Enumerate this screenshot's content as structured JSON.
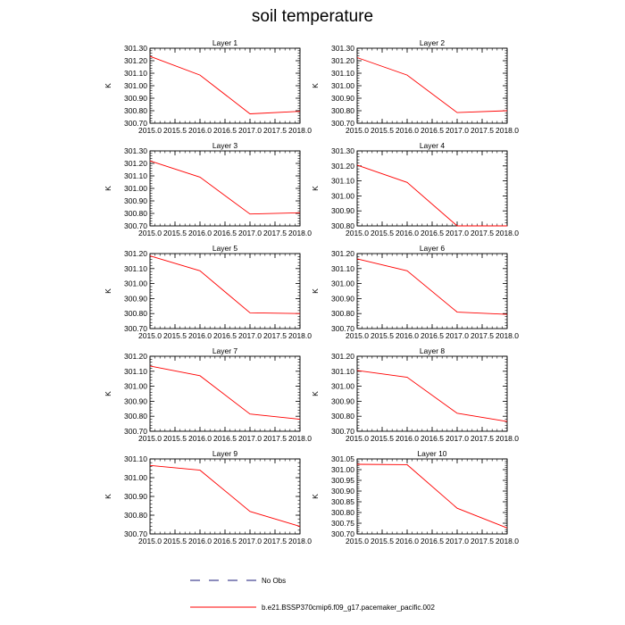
{
  "title": "soil temperature",
  "legend": {
    "items": [
      {
        "label": "No Obs",
        "style": "dashed",
        "color": "#1a1a7a"
      },
      {
        "label": "b.e21.BSSP370cmip6.f09_g17.pacemaker_pacific.002",
        "style": "solid",
        "color": "#ff0000"
      }
    ]
  },
  "chart_data": [
    {
      "type": "line",
      "title": "Layer 1",
      "ylabel": "K",
      "xlim": [
        2015.0,
        2018.0
      ],
      "ylim": [
        300.7,
        301.3
      ],
      "xticks": [
        "2015.0",
        "2015.5",
        "2016.0",
        "2016.5",
        "2017.0",
        "2017.5",
        "2018.0"
      ],
      "yticks": [
        "300.70",
        "300.80",
        "300.90",
        "301.00",
        "301.10",
        "301.20",
        "301.30"
      ],
      "series": [
        {
          "x": [
            2015,
            2016,
            2017,
            2018
          ],
          "y": [
            301.235,
            301.085,
            300.775,
            300.795
          ],
          "color": "#ff0000"
        }
      ]
    },
    {
      "type": "line",
      "title": "Layer 2",
      "ylabel": "K",
      "xlim": [
        2015.0,
        2018.0
      ],
      "ylim": [
        300.7,
        301.3
      ],
      "xticks": [
        "2015.0",
        "2015.5",
        "2016.0",
        "2016.5",
        "2017.0",
        "2017.5",
        "2018.0"
      ],
      "yticks": [
        "300.70",
        "300.80",
        "300.90",
        "301.00",
        "301.10",
        "301.20",
        "301.30"
      ],
      "series": [
        {
          "x": [
            2015,
            2016,
            2017,
            2018
          ],
          "y": [
            301.225,
            301.085,
            300.785,
            300.8
          ],
          "color": "#ff0000"
        }
      ]
    },
    {
      "type": "line",
      "title": "Layer 3",
      "ylabel": "K",
      "xlim": [
        2015.0,
        2018.0
      ],
      "ylim": [
        300.7,
        301.3
      ],
      "xticks": [
        "2015.0",
        "2015.5",
        "2016.0",
        "2016.5",
        "2017.0",
        "2017.5",
        "2018.0"
      ],
      "yticks": [
        "300.70",
        "300.80",
        "300.90",
        "301.00",
        "301.10",
        "301.20",
        "301.30"
      ],
      "series": [
        {
          "x": [
            2015,
            2016,
            2017,
            2018
          ],
          "y": [
            301.22,
            301.09,
            300.795,
            300.805
          ],
          "color": "#ff0000"
        }
      ]
    },
    {
      "type": "line",
      "title": "Layer 4",
      "ylabel": "K",
      "xlim": [
        2015.0,
        2018.0
      ],
      "ylim": [
        300.8,
        301.3
      ],
      "xticks": [
        "2015.0",
        "2015.5",
        "2016.0",
        "2016.5",
        "2017.0",
        "2017.5",
        "2018.0"
      ],
      "yticks": [
        "300.80",
        "300.90",
        "301.00",
        "301.10",
        "301.20",
        "301.30"
      ],
      "series": [
        {
          "x": [
            2015,
            2016,
            2017,
            2018
          ],
          "y": [
            301.205,
            301.09,
            300.8,
            300.8
          ],
          "color": "#ff0000"
        }
      ]
    },
    {
      "type": "line",
      "title": "Layer 5",
      "ylabel": "K",
      "xlim": [
        2015.0,
        2018.0
      ],
      "ylim": [
        300.7,
        301.2
      ],
      "xticks": [
        "2015.0",
        "2015.5",
        "2016.0",
        "2016.5",
        "2017.0",
        "2017.5",
        "2018.0"
      ],
      "yticks": [
        "300.70",
        "300.80",
        "300.90",
        "301.00",
        "301.10",
        "301.20"
      ],
      "series": [
        {
          "x": [
            2015,
            2016,
            2017,
            2018
          ],
          "y": [
            301.185,
            301.085,
            300.805,
            300.8
          ],
          "color": "#ff0000"
        }
      ]
    },
    {
      "type": "line",
      "title": "Layer 6",
      "ylabel": "K",
      "xlim": [
        2015.0,
        2018.0
      ],
      "ylim": [
        300.7,
        301.2
      ],
      "xticks": [
        "2015.0",
        "2015.5",
        "2016.0",
        "2016.5",
        "2017.0",
        "2017.5",
        "2018.0"
      ],
      "yticks": [
        "300.70",
        "300.80",
        "300.90",
        "301.00",
        "301.10",
        "301.20"
      ],
      "series": [
        {
          "x": [
            2015,
            2016,
            2017,
            2018
          ],
          "y": [
            301.165,
            301.085,
            300.81,
            300.795
          ],
          "color": "#ff0000"
        }
      ]
    },
    {
      "type": "line",
      "title": "Layer 7",
      "ylabel": "K",
      "xlim": [
        2015.0,
        2018.0
      ],
      "ylim": [
        300.7,
        301.2
      ],
      "xticks": [
        "2015.0",
        "2015.5",
        "2016.0",
        "2016.5",
        "2017.0",
        "2017.5",
        "2018.0"
      ],
      "yticks": [
        "300.70",
        "300.80",
        "300.90",
        "301.00",
        "301.10",
        "301.20"
      ],
      "series": [
        {
          "x": [
            2015,
            2016,
            2017,
            2018
          ],
          "y": [
            301.135,
            301.07,
            300.815,
            300.78
          ],
          "color": "#ff0000"
        }
      ]
    },
    {
      "type": "line",
      "title": "Layer 8",
      "ylabel": "K",
      "xlim": [
        2015.0,
        2018.0
      ],
      "ylim": [
        300.7,
        301.2
      ],
      "xticks": [
        "2015.0",
        "2015.5",
        "2016.0",
        "2016.5",
        "2017.0",
        "2017.5",
        "2018.0"
      ],
      "yticks": [
        "300.70",
        "300.80",
        "300.90",
        "301.00",
        "301.10",
        "301.20"
      ],
      "series": [
        {
          "x": [
            2015,
            2016,
            2017,
            2018
          ],
          "y": [
            301.105,
            301.06,
            300.82,
            300.765
          ],
          "color": "#ff0000"
        }
      ]
    },
    {
      "type": "line",
      "title": "Layer 9",
      "ylabel": "K",
      "xlim": [
        2015.0,
        2018.0
      ],
      "ylim": [
        300.7,
        301.1
      ],
      "xticks": [
        "2015.0",
        "2015.5",
        "2016.0",
        "2016.5",
        "2017.0",
        "2017.5",
        "2018.0"
      ],
      "yticks": [
        "300.70",
        "300.80",
        "300.90",
        "301.00",
        "301.10"
      ],
      "series": [
        {
          "x": [
            2015,
            2016,
            2017,
            2018
          ],
          "y": [
            301.065,
            301.04,
            300.82,
            300.74
          ],
          "color": "#ff0000"
        }
      ]
    },
    {
      "type": "line",
      "title": "Layer 10",
      "ylabel": "K",
      "xlim": [
        2015.0,
        2018.0
      ],
      "ylim": [
        300.7,
        301.05
      ],
      "xticks": [
        "2015.0",
        "2015.5",
        "2016.0",
        "2016.5",
        "2017.0",
        "2017.5",
        "2018.0"
      ],
      "yticks": [
        "300.70",
        "300.75",
        "300.80",
        "300.85",
        "300.90",
        "300.95",
        "301.00",
        "301.05"
      ],
      "series": [
        {
          "x": [
            2015,
            2016,
            2017,
            2018
          ],
          "y": [
            301.025,
            301.023,
            300.82,
            300.728
          ],
          "color": "#ff0000"
        }
      ]
    }
  ]
}
